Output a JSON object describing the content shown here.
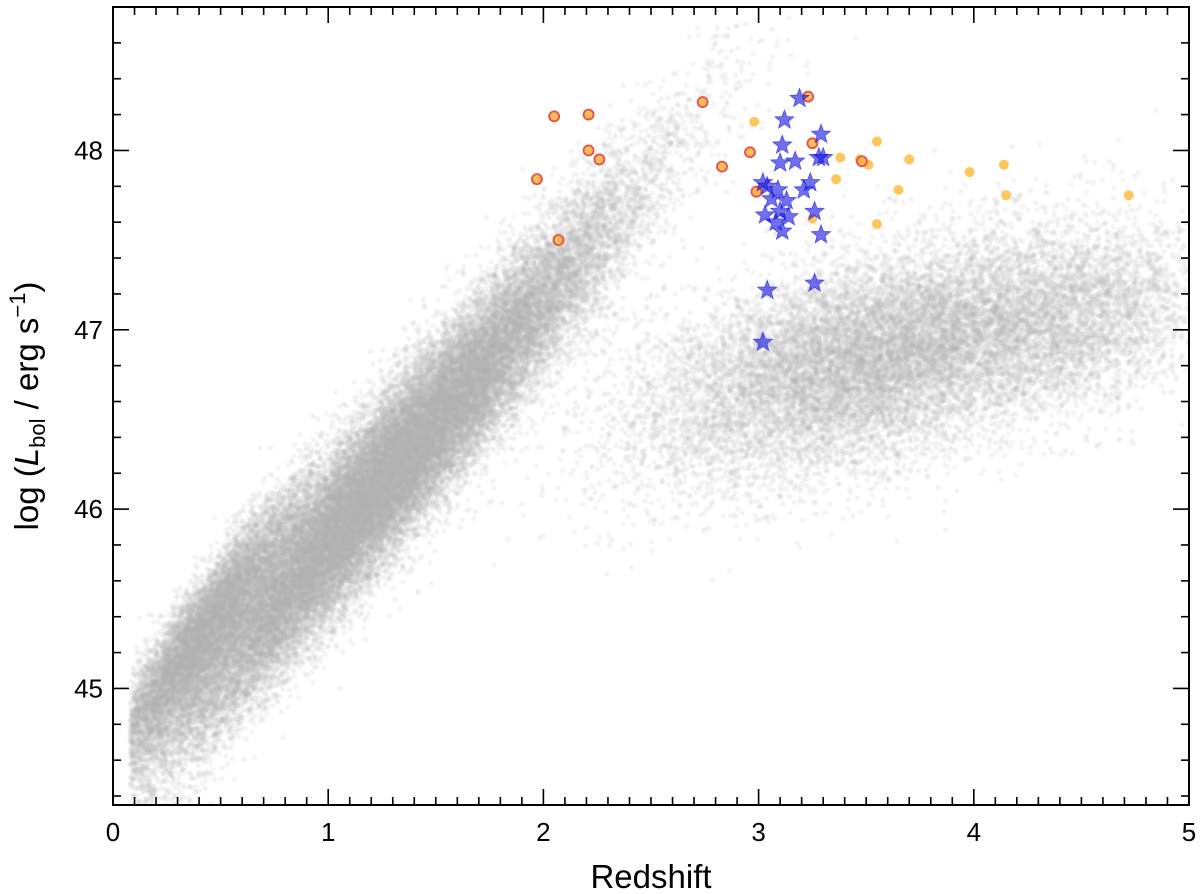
{
  "chart_data": {
    "type": "scatter",
    "title": "",
    "xlabel": "Redshift",
    "ylabel": {
      "prefix": "log (",
      "symbol": "L",
      "subscript": "bol",
      "middle": " / erg s",
      "superscript": "−1",
      "suffix": ")"
    },
    "xlim": [
      0,
      5
    ],
    "ylim": [
      44.35,
      48.8
    ],
    "xticks": [
      0,
      1,
      2,
      3,
      4,
      5
    ],
    "yticks": [
      45,
      46,
      47,
      48
    ],
    "grid": false,
    "legend": "none",
    "background": {
      "description": "dense cloud of several hundred thousand points",
      "color": "#b0b0b0",
      "density_model": [
        {
          "mean_x": 1.25,
          "mean_y": 46.15,
          "sd_along_x": 0.55,
          "slope": 1.35,
          "sd_across": 0.22,
          "weight": 0.62
        },
        {
          "mean_x": 0.4,
          "mean_y": 45.3,
          "sd_along_x": 0.22,
          "slope": 1.6,
          "sd_across": 0.14,
          "weight": 0.12
        },
        {
          "mean_x": 3.55,
          "mean_y": 46.85,
          "sd_along_x": 0.55,
          "slope": 0.3,
          "sd_across": 0.28,
          "weight": 0.22
        },
        {
          "mean_x": 4.5,
          "mean_y": 47.05,
          "sd_along_x": 0.3,
          "slope": 0.2,
          "sd_across": 0.25,
          "weight": 0.04
        }
      ]
    },
    "series": [
      {
        "marker": "circle",
        "color": "#ffc04d",
        "edgecolor": "#ffc04d",
        "points": [
          [
            2.98,
            48.16
          ],
          [
            3.38,
            47.96
          ],
          [
            3.47,
            47.95
          ],
          [
            3.51,
            47.92
          ],
          [
            3.55,
            48.05
          ],
          [
            3.36,
            47.84
          ],
          [
            3.55,
            47.59
          ],
          [
            3.65,
            47.78
          ],
          [
            3.7,
            47.95
          ],
          [
            3.98,
            47.88
          ],
          [
            4.14,
            47.92
          ],
          [
            4.15,
            47.75
          ],
          [
            4.72,
            47.75
          ],
          [
            3.25,
            47.62
          ],
          [
            3.0,
            47.78
          ]
        ]
      },
      {
        "marker": "circle",
        "color": "#ffb347",
        "edgecolor": "#e0524a",
        "points": [
          [
            2.05,
            48.19
          ],
          [
            2.21,
            48.2
          ],
          [
            1.97,
            47.84
          ],
          [
            2.21,
            48.0
          ],
          [
            2.26,
            47.95
          ],
          [
            2.07,
            47.5
          ],
          [
            2.74,
            48.27
          ],
          [
            2.83,
            47.91
          ],
          [
            2.96,
            47.99
          ],
          [
            2.99,
            47.77
          ],
          [
            3.23,
            48.3
          ],
          [
            3.25,
            48.04
          ],
          [
            3.48,
            47.94
          ]
        ]
      },
      {
        "marker": "star",
        "color": "#1010e0",
        "points": [
          [
            3.19,
            48.29
          ],
          [
            3.12,
            48.17
          ],
          [
            3.29,
            48.09
          ],
          [
            3.11,
            48.03
          ],
          [
            3.3,
            47.96
          ],
          [
            3.1,
            47.93
          ],
          [
            3.17,
            47.94
          ],
          [
            3.28,
            47.96
          ],
          [
            3.02,
            47.82
          ],
          [
            3.04,
            47.8
          ],
          [
            3.09,
            47.78
          ],
          [
            3.21,
            47.78
          ],
          [
            3.24,
            47.82
          ],
          [
            3.13,
            47.72
          ],
          [
            3.06,
            47.73
          ],
          [
            3.1,
            47.66
          ],
          [
            3.03,
            47.64
          ],
          [
            3.08,
            47.6
          ],
          [
            3.14,
            47.63
          ],
          [
            3.26,
            47.66
          ],
          [
            3.11,
            47.55
          ],
          [
            3.29,
            47.53
          ],
          [
            3.04,
            47.22
          ],
          [
            3.26,
            47.26
          ],
          [
            3.02,
            46.93
          ]
        ]
      }
    ]
  }
}
